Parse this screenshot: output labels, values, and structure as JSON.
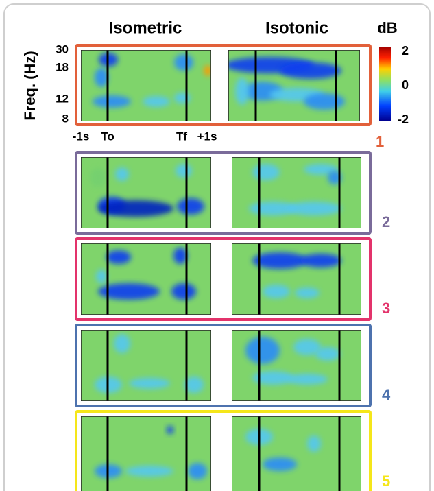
{
  "column_titles": [
    "Isometric",
    "Isotonic"
  ],
  "y_axis": {
    "label": "Freq. (Hz)",
    "ticks": [
      "30",
      "18",
      "12",
      "8"
    ]
  },
  "x_axis": {
    "ticks": [
      "-1s",
      "To",
      "Tf",
      "+1s"
    ]
  },
  "colorbar": {
    "title": "dB",
    "ticks": [
      "2",
      "0",
      "-2"
    ]
  },
  "rows": [
    {
      "label": "1"
    },
    {
      "label": "2"
    },
    {
      "label": "3"
    },
    {
      "label": "4"
    },
    {
      "label": "5"
    }
  ]
}
